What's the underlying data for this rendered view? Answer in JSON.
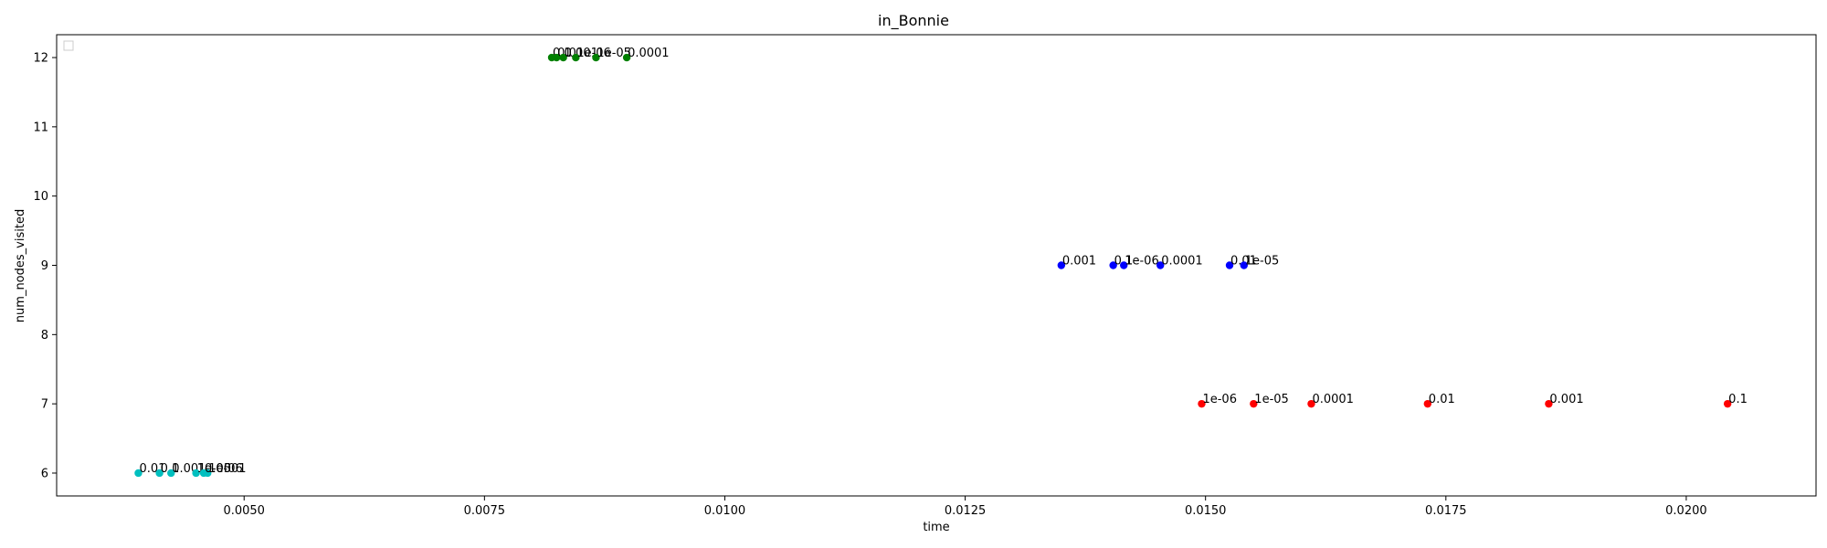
{
  "chart_data": {
    "type": "scatter",
    "title": "in_Bonnie",
    "xlabel": "time",
    "ylabel": "num_nodes_visited",
    "xlim": [
      0.00305,
      0.02135
    ],
    "ylim": [
      5.67,
      12.33
    ],
    "xticks": [
      "0.0050",
      "0.0075",
      "0.0100",
      "0.0125",
      "0.0150",
      "0.0175",
      "0.0200"
    ],
    "xtick_values": [
      0.005,
      0.0075,
      0.01,
      0.0125,
      0.015,
      0.0175,
      0.02
    ],
    "yticks": [
      "6",
      "7",
      "8",
      "9",
      "10",
      "11",
      "12"
    ],
    "ytick_values": [
      6,
      7,
      8,
      9,
      10,
      11,
      12
    ],
    "grid": false,
    "legend": "upper-left (empty)",
    "series": [
      {
        "color": "#00bfbf",
        "points": [
          {
            "x": 0.0039,
            "y": 6,
            "label": "0.01"
          },
          {
            "x": 0.00412,
            "y": 6,
            "label": "0.1"
          },
          {
            "x": 0.00424,
            "y": 6,
            "label": "0.001"
          },
          {
            "x": 0.0045,
            "y": 6,
            "label": "1e-05"
          },
          {
            "x": 0.00462,
            "y": 6,
            "label": "1e-06"
          },
          {
            "x": 0.00458,
            "y": 6,
            "label": "0.0001"
          }
        ]
      },
      {
        "color": "#008000",
        "points": [
          {
            "x": 0.0082,
            "y": 12,
            "label": "0.1"
          },
          {
            "x": 0.00825,
            "y": 12,
            "label": "0.01"
          },
          {
            "x": 0.00832,
            "y": 12,
            "label": "0.001"
          },
          {
            "x": 0.00845,
            "y": 12,
            "label": "1e-06"
          },
          {
            "x": 0.00866,
            "y": 12,
            "label": "1e-05"
          },
          {
            "x": 0.00898,
            "y": 12,
            "label": "0.0001"
          }
        ]
      },
      {
        "color": "#0000ff",
        "points": [
          {
            "x": 0.0135,
            "y": 9,
            "label": "0.001"
          },
          {
            "x": 0.01404,
            "y": 9,
            "label": "0.1"
          },
          {
            "x": 0.01415,
            "y": 9,
            "label": "1e-06"
          },
          {
            "x": 0.01453,
            "y": 9,
            "label": "0.0001"
          },
          {
            "x": 0.01525,
            "y": 9,
            "label": "0.01"
          },
          {
            "x": 0.0154,
            "y": 9,
            "label": "1e-05"
          }
        ]
      },
      {
        "color": "#ff0000",
        "points": [
          {
            "x": 0.01496,
            "y": 7,
            "label": "1e-06"
          },
          {
            "x": 0.0155,
            "y": 7,
            "label": "1e-05"
          },
          {
            "x": 0.0161,
            "y": 7,
            "label": "0.0001"
          },
          {
            "x": 0.01731,
            "y": 7,
            "label": "0.01"
          },
          {
            "x": 0.01857,
            "y": 7,
            "label": "0.001"
          },
          {
            "x": 0.02043,
            "y": 7,
            "label": "0.1"
          }
        ]
      }
    ]
  }
}
